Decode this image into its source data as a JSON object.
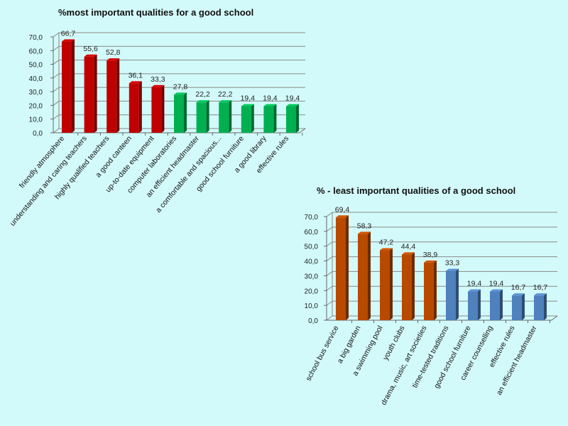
{
  "chart_data": [
    {
      "type": "bar",
      "title": "%most important qualities for a good school",
      "xlabel": "",
      "ylabel": "",
      "ylim": [
        0,
        70
      ],
      "yticks": [
        "0,0",
        "10,0",
        "20,0",
        "30,0",
        "40,0",
        "50,0",
        "60,0",
        "70,0"
      ],
      "grid": true,
      "categories": [
        "friendly atmosphere",
        "understanding and caring teachers",
        "highly qualified teachers",
        "a good canteen",
        "up-to-date equipment",
        "computer laboratories",
        "an efficient headmaster",
        "a comfortable and spacious...",
        "good school furniture",
        "a good library",
        "effective rules"
      ],
      "values": [
        66.7,
        55.6,
        52.8,
        36.1,
        33.3,
        27.8,
        22.2,
        22.2,
        19.4,
        19.4,
        19.4
      ],
      "labels": [
        "66,7",
        "55,6",
        "52,8",
        "36,1",
        "33,3",
        "27,8",
        "22,2",
        "22,2",
        "19,4",
        "19,4",
        "19,4"
      ],
      "colors": [
        "#c00000",
        "#c00000",
        "#c00000",
        "#c00000",
        "#c00000",
        "#00b050",
        "#00b050",
        "#00b050",
        "#00b050",
        "#00b050",
        "#00b050"
      ]
    },
    {
      "type": "bar",
      "title": "%  - least important qualities of a good school",
      "xlabel": "",
      "ylabel": "",
      "ylim": [
        0,
        70
      ],
      "yticks": [
        "0,0",
        "10,0",
        "20,0",
        "30,0",
        "40,0",
        "50,0",
        "60,0",
        "70,0"
      ],
      "grid": true,
      "categories": [
        "school bus service",
        "a big garden",
        "a swimming pool",
        "youth clubs",
        "drama, music, art societies",
        "time-tested traditions",
        "good school furniture",
        "career counselling",
        "effective rules",
        "an efficient headmaster"
      ],
      "values": [
        69.4,
        58.3,
        47.2,
        44.4,
        38.9,
        33.3,
        19.4,
        19.4,
        16.7,
        16.7
      ],
      "labels": [
        "69,4",
        "58,3",
        "47,2",
        "44,4",
        "38,9",
        "33,3",
        "19,4",
        "19,4",
        "16,7",
        "16,7"
      ],
      "colors": [
        "#b84a00",
        "#b84a00",
        "#b84a00",
        "#b84a00",
        "#b84a00",
        "#4f81bd",
        "#4f81bd",
        "#4f81bd",
        "#4f81bd",
        "#4f81bd"
      ]
    }
  ]
}
